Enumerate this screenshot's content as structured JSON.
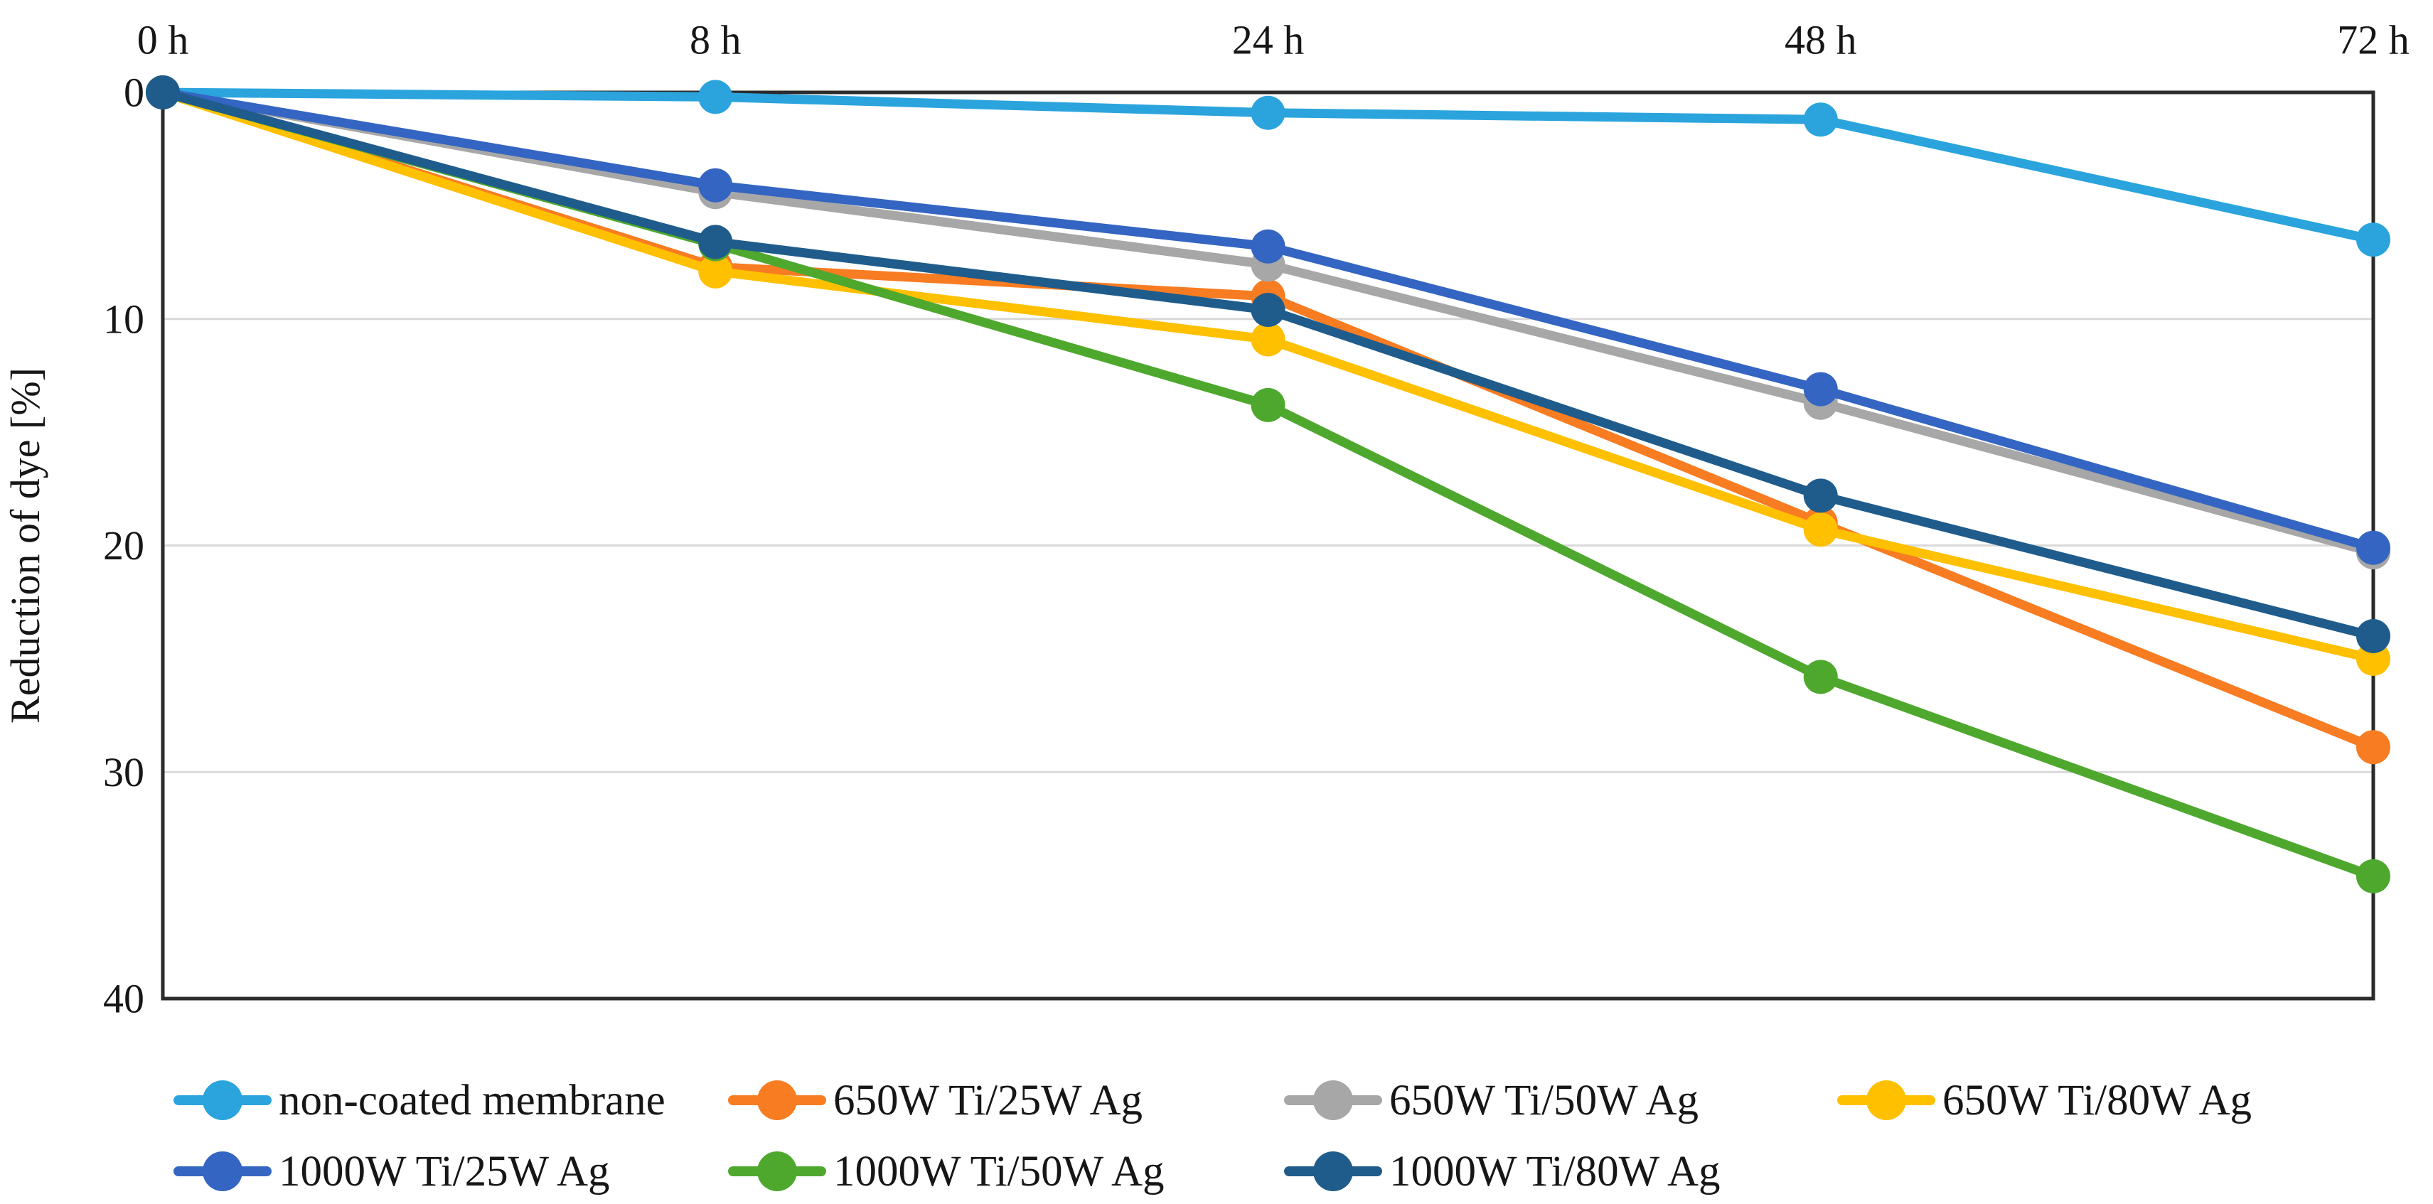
{
  "chart_data": {
    "type": "line",
    "title": "",
    "xlabel": "",
    "ylabel": "Reduction of dye [%]",
    "x_tick_labels": [
      "0 h",
      "8 h",
      "24 h",
      "48 h",
      "72 h"
    ],
    "y_ticks": [
      0,
      10,
      20,
      30,
      40
    ],
    "ylim": [
      0,
      40
    ],
    "y_axis_direction": "inverted (0 at top, 40 at bottom)",
    "grid": "horizontal",
    "legend_position": "bottom",
    "categories": [
      "0 h",
      "8 h",
      "24 h",
      "48 h",
      "72 h"
    ],
    "series": [
      {
        "name": "non-coated membrane",
        "color": "#2BA4DD",
        "values": [
          0,
          0.2,
          0.9,
          1.2,
          6.5
        ]
      },
      {
        "name": "650W Ti/25W Ag",
        "color": "#F87C22",
        "values": [
          0,
          7.7,
          9.0,
          19.0,
          28.9
        ]
      },
      {
        "name": "650W Ti/50W Ag",
        "color": "#A7A7A7",
        "values": [
          0,
          4.4,
          7.6,
          13.7,
          20.3
        ]
      },
      {
        "name": "650W Ti/80W Ag",
        "color": "#FFC000",
        "values": [
          0,
          7.9,
          10.9,
          19.3,
          25.0
        ]
      },
      {
        "name": "1000W Ti/25W Ag",
        "color": "#3465C2",
        "values": [
          0,
          4.1,
          6.8,
          13.1,
          20.1
        ]
      },
      {
        "name": "1000W Ti/50W Ag",
        "color": "#4FA82E",
        "values": [
          0,
          6.7,
          13.8,
          25.8,
          34.6
        ]
      },
      {
        "name": "1000W Ti/80W Ag",
        "color": "#1F5C8B",
        "values": [
          0,
          6.6,
          9.6,
          17.8,
          24.0
        ]
      }
    ],
    "legend_rows": [
      [
        0,
        1,
        2,
        3
      ],
      [
        4,
        5,
        6
      ]
    ],
    "colors": {
      "gridline": "#D9D9D9",
      "axis": "#2b2b2b",
      "text": "#161616"
    }
  }
}
